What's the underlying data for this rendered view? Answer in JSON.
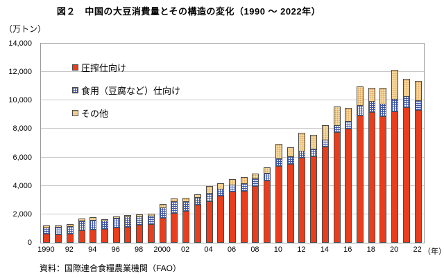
{
  "title": "図２　中国の大豆消費量とその構造の変化（1990 ～ 2022年）",
  "y_axis_unit": "（万トン）",
  "x_axis_suffix": "（年）",
  "source": "資料：国際連合食糧農業機関（FAO）",
  "colors": {
    "crush": "#e83e1d",
    "food_pattern_line": "#3f56a5",
    "food_background": "#ffffff",
    "other": "#f8dda4",
    "segment_border": "#4a4a4a",
    "gridline": "#c6c6c6",
    "plot_border": "#9a9a9a"
  },
  "legend": {
    "items": [
      {
        "key": "crush",
        "label": "圧搾仕向け",
        "swatch": "red-solid"
      },
      {
        "key": "food",
        "label": "食用（豆腐など）仕向け",
        "swatch": "blue-check"
      },
      {
        "key": "other",
        "label": "その他",
        "swatch": "cream-dotted"
      }
    ]
  },
  "chart_data": {
    "type": "bar",
    "stacked": true,
    "unit": "万トン",
    "title": "図２　中国の大豆消費量とその構造の変化（1990 ～ 2022年）",
    "xlabel": "年",
    "ylabel": "万トン",
    "ylim": [
      0,
      14000
    ],
    "grid": true,
    "legend_position": "top-left-inside",
    "categories": [
      1990,
      1991,
      1992,
      1993,
      1994,
      1995,
      1996,
      1997,
      1998,
      1999,
      2000,
      2001,
      2002,
      2003,
      2004,
      2005,
      2006,
      2007,
      2008,
      2009,
      2010,
      2011,
      2012,
      2013,
      2014,
      2015,
      2016,
      2017,
      2018,
      2019,
      2020,
      2021,
      2022
    ],
    "series": [
      {
        "name": "圧搾仕向け",
        "key": "crush",
        "css": "seg-crush",
        "values": [
          580,
          550,
          600,
          850,
          880,
          930,
          1000,
          1090,
          1200,
          1250,
          1700,
          2050,
          2180,
          2640,
          2850,
          3250,
          3570,
          3600,
          3920,
          4320,
          5330,
          5500,
          5950,
          6030,
          6710,
          7720,
          7960,
          8900,
          9120,
          8850,
          9210,
          9500,
          9290
        ]
      },
      {
        "name": "食用（豆腐など）仕向け",
        "key": "food",
        "css": "seg-food",
        "values": [
          460,
          500,
          520,
          650,
          700,
          560,
          700,
          720,
          620,
          580,
          750,
          800,
          700,
          510,
          590,
          510,
          480,
          510,
          560,
          530,
          540,
          550,
          480,
          520,
          480,
          480,
          560,
          710,
          800,
          850,
          850,
          760,
          660
        ]
      },
      {
        "name": "その他",
        "key": "other",
        "css": "seg-other",
        "values": [
          200,
          170,
          180,
          200,
          200,
          160,
          170,
          150,
          180,
          220,
          250,
          250,
          300,
          250,
          530,
          430,
          400,
          510,
          400,
          430,
          1090,
          650,
          1290,
          1050,
          1060,
          1370,
          970,
          1390,
          980,
          1200,
          2110,
          1240,
          1430
        ]
      }
    ],
    "y_ticks": [
      "0",
      "2,000",
      "4,000",
      "6,000",
      "8,000",
      "10,000",
      "12,000",
      "14,000"
    ],
    "x_tick_labels": [
      "1990",
      "92",
      "94",
      "96",
      "98",
      "2000",
      "02",
      "04",
      "06",
      "08",
      "10",
      "12",
      "14",
      "16",
      "18",
      "20",
      "22"
    ]
  }
}
